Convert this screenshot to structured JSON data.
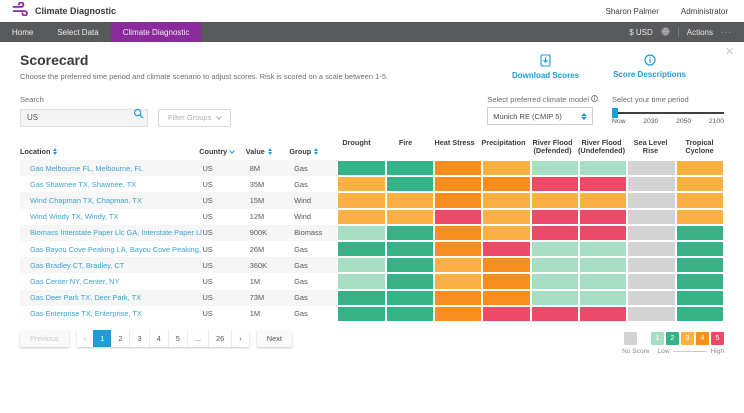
{
  "app": {
    "brand": "Climate Diagnostic",
    "user_name": "Sharon Palmer",
    "user_role": "Administrator"
  },
  "nav": {
    "items": [
      {
        "label": "Home",
        "active": false
      },
      {
        "label": "Select Data",
        "active": false
      },
      {
        "label": "Climate Diagnostic",
        "active": true
      }
    ],
    "currency": "$ USD",
    "actions_label": "Actions",
    "actions_ellipsis": "···"
  },
  "scorecard": {
    "title": "Scorecard",
    "subtitle": "Choose the preferred time period and climate scenario to adjust scores. Risk is scored on a scale between 1-5.",
    "download_label": "Download Scores",
    "descriptions_label": "Score Descriptions",
    "search": {
      "label": "Search",
      "value": "US"
    },
    "filter_groups_label": "Filter Groups",
    "climate_model": {
      "label": "Select preferred climate model",
      "value": "Munich RE (CMIP 5)"
    },
    "time_period": {
      "label": "Select your time period",
      "ticks": [
        "Now",
        "2030",
        "2050",
        "2100"
      ],
      "selected": "Now"
    }
  },
  "table": {
    "columns": [
      {
        "label": "Location",
        "sort": "both"
      },
      {
        "label": "Country",
        "sort": "down"
      },
      {
        "label": "Value",
        "sort": "both"
      },
      {
        "label": "Group",
        "sort": "both"
      }
    ],
    "risk_columns": [
      "Drought",
      "Fire",
      "Heat Stress",
      "Precipitation",
      "River Flood (Defended)",
      "River Flood (Undefended)",
      "Sea Level Rise",
      "Tropical Cyclone"
    ],
    "rows": [
      {
        "location": "Gas Melbourne FL, Melbourne, FL",
        "country": "US",
        "value": "8M",
        "group": "Gas",
        "scores": [
          2,
          2,
          4,
          3,
          1,
          1,
          0,
          3
        ]
      },
      {
        "location": "Gas Shawnee TX, Shawnee, TX",
        "country": "US",
        "value": "35M",
        "group": "Gas",
        "scores": [
          3,
          2,
          4,
          4,
          5,
          5,
          0,
          3
        ]
      },
      {
        "location": "Wind Chapman TX, Chapman, TX",
        "country": "US",
        "value": "15M",
        "group": "Wind",
        "scores": [
          3,
          3,
          4,
          3,
          3,
          3,
          0,
          3
        ]
      },
      {
        "location": "Wind Windy TX, Windy, TX",
        "country": "US",
        "value": "12M",
        "group": "Wind",
        "scores": [
          3,
          3,
          5,
          3,
          5,
          5,
          0,
          3
        ]
      },
      {
        "location": "Biomass Interstate Paper Llc GA, Interstate Paper Llc, GA",
        "country": "US",
        "value": "900K",
        "group": "Biomass",
        "scores": [
          1,
          2,
          4,
          3,
          5,
          5,
          0,
          2
        ]
      },
      {
        "location": "Gas Bayou Cove Peaking LA, Bayou Cove Peaking, LA",
        "country": "US",
        "value": "26M",
        "group": "Gas",
        "scores": [
          2,
          2,
          4,
          5,
          1,
          1,
          0,
          2
        ]
      },
      {
        "location": "Gas Bradley CT, Bradley, CT",
        "country": "US",
        "value": "360K",
        "group": "Gas",
        "scores": [
          1,
          2,
          3,
          4,
          1,
          1,
          0,
          2
        ]
      },
      {
        "location": "Gas Center NY, Center, NY",
        "country": "US",
        "value": "1M",
        "group": "Gas",
        "scores": [
          1,
          2,
          3,
          4,
          1,
          1,
          0,
          2
        ]
      },
      {
        "location": "Gas Deer Park TX, Deer Park, TX",
        "country": "US",
        "value": "73M",
        "group": "Gas",
        "scores": [
          2,
          2,
          4,
          4,
          1,
          1,
          0,
          2
        ]
      },
      {
        "location": "Gas Enterprise TX, Enterprise, TX",
        "country": "US",
        "value": "1M",
        "group": "Gas",
        "scores": [
          2,
          2,
          4,
          5,
          5,
          5,
          0,
          2
        ]
      }
    ]
  },
  "pagination": {
    "previous_label": "Previous",
    "pages": [
      "‹",
      "1",
      "2",
      "3",
      "4",
      "5",
      "...",
      "26",
      "›"
    ],
    "current_page": "1",
    "next_label": "Next"
  },
  "legend": {
    "no_score_label": "No Score",
    "low_label": "Low",
    "high_label": "High",
    "no_score_color": "#D3D3D3",
    "scale": [
      {
        "score": "1",
        "color": "#A6DFC6"
      },
      {
        "score": "2",
        "color": "#35B286"
      },
      {
        "score": "3",
        "color": "#FBB042"
      },
      {
        "score": "4",
        "color": "#F78E1E"
      },
      {
        "score": "5",
        "color": "#ED4A6A"
      }
    ]
  },
  "colors": {
    "brand_purple": "#8A2B9B",
    "accent_blue": "#1E9CD7",
    "link_blue": "#3BA3D4",
    "nav_gray": "#58595B"
  }
}
